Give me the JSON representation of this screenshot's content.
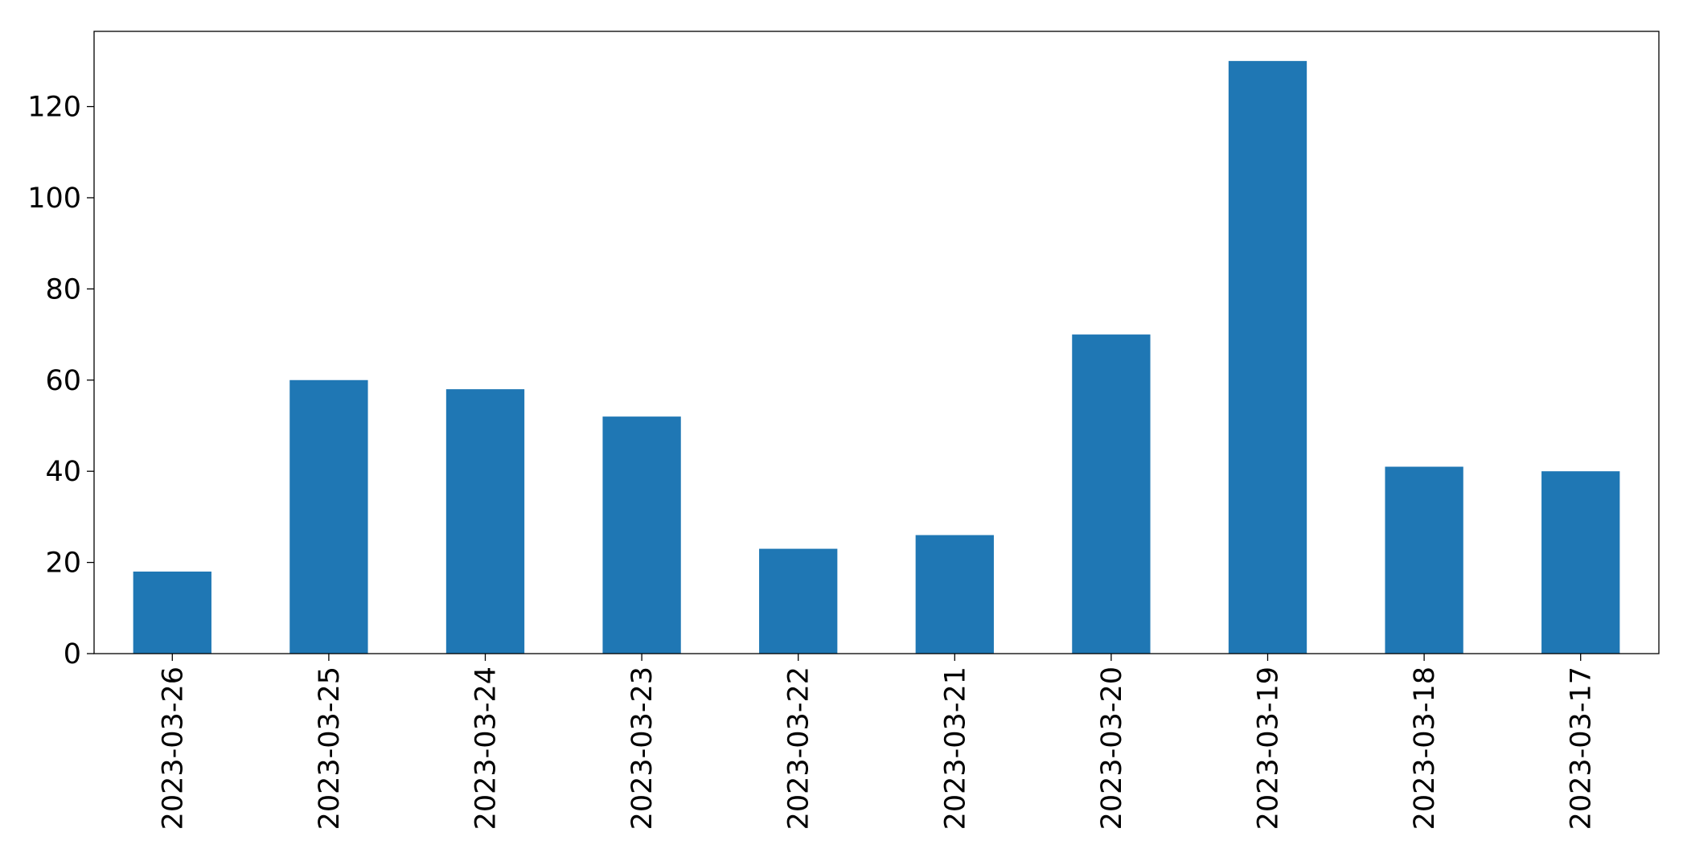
{
  "chart_data": {
    "type": "bar",
    "categories": [
      "2023-03-26",
      "2023-03-25",
      "2023-03-24",
      "2023-03-23",
      "2023-03-22",
      "2023-03-21",
      "2023-03-20",
      "2023-03-19",
      "2023-03-18",
      "2023-03-17"
    ],
    "values": [
      18,
      60,
      58,
      52,
      23,
      26,
      70,
      130,
      41,
      40
    ],
    "color": "#1f77b4",
    "ylim": [
      0,
      136.5
    ],
    "yticks": [
      0,
      20,
      40,
      60,
      80,
      100,
      120
    ],
    "grid": false
  }
}
